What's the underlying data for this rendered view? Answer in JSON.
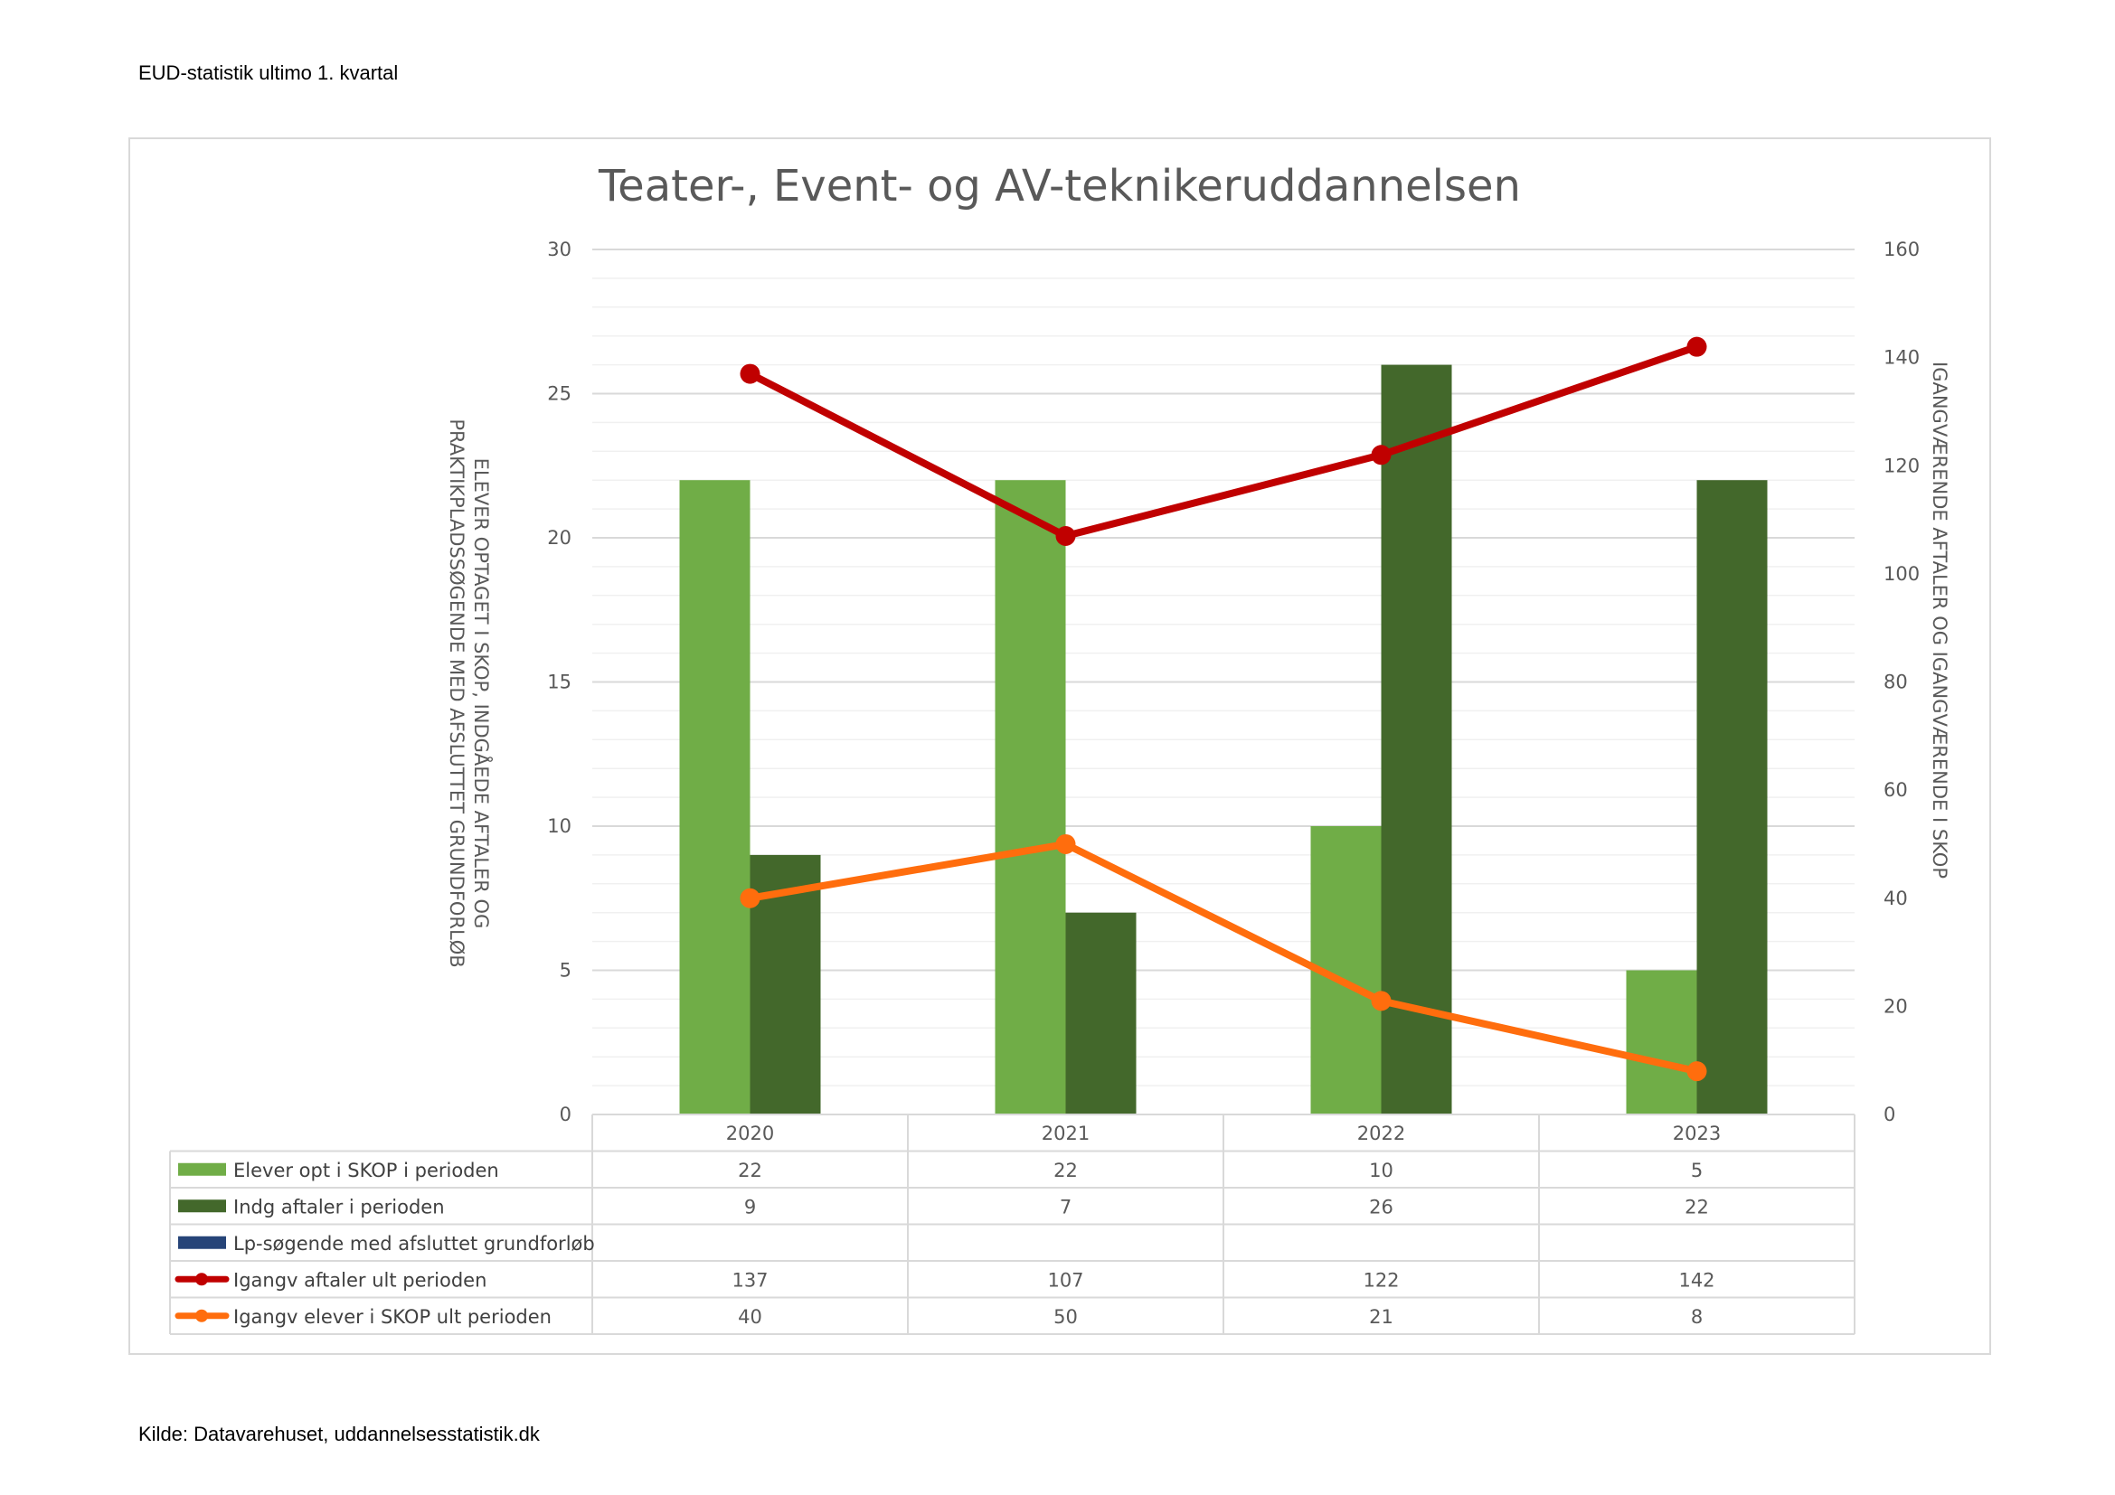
{
  "page": {
    "header": "EUD-statistik ultimo 1. kvartal",
    "footer": "Kilde: Datavarehuset, uddannelsesstatistik.dk"
  },
  "chart_data": {
    "type": "bar",
    "title": "Teater-, Event- og AV-teknikeruddannelsen",
    "categories": [
      "2020",
      "2021",
      "2022",
      "2023"
    ],
    "y_left": {
      "label": "ELEVER OPTAGET I SKOP, INDGÅEDE AFTALER OG PRAKTIKPLADSSØGENDE MED AFSLUTTET GRUNDFORLØB",
      "label_lines": [
        "ELEVER OPTAGET I SKOP, INDGÅEDE AFTALER OG",
        "PRAKTIKPLADSSØGENDE MED AFSLUTTET GRUNDFORLØB"
      ],
      "min": 0,
      "max": 30,
      "step": 5,
      "ticks": [
        "0",
        "5",
        "10",
        "15",
        "20",
        "25",
        "30"
      ]
    },
    "y_right": {
      "label": "IGANGVÆRENDE AFTALER OG IGANGVÆRENDE I SKOP",
      "min": 0,
      "max": 160,
      "step": 20,
      "ticks": [
        "0",
        "20",
        "40",
        "60",
        "80",
        "100",
        "120",
        "140",
        "160"
      ]
    },
    "series": [
      {
        "name": "Elever opt i SKOP i perioden",
        "kind": "bar",
        "axis": "left",
        "color": "#70ad47",
        "values": [
          22,
          22,
          10,
          5
        ]
      },
      {
        "name": "Indg aftaler i perioden",
        "kind": "bar",
        "axis": "left",
        "color": "#43682b",
        "values": [
          9,
          7,
          26,
          22
        ]
      },
      {
        "name": "Lp-søgende med afsluttet grundforløb",
        "kind": "bar",
        "axis": "left",
        "color": "#264478",
        "values": [
          null,
          null,
          null,
          null
        ]
      },
      {
        "name": "Igangv aftaler ult perioden",
        "kind": "line",
        "axis": "right",
        "color": "#c00000",
        "values": [
          137,
          107,
          122,
          142
        ]
      },
      {
        "name": "Igangv elever i SKOP ult perioden",
        "kind": "line",
        "axis": "right",
        "color": "#ff6d0d",
        "values": [
          40,
          50,
          21,
          8
        ]
      }
    ],
    "data_table": {
      "rows": [
        [
          "22",
          "22",
          "10",
          "5"
        ],
        [
          "9",
          "7",
          "26",
          "22"
        ],
        [
          "",
          "",
          "",
          ""
        ],
        [
          "137",
          "107",
          "122",
          "142"
        ],
        [
          "40",
          "50",
          "21",
          "8"
        ]
      ]
    },
    "grid": true
  }
}
